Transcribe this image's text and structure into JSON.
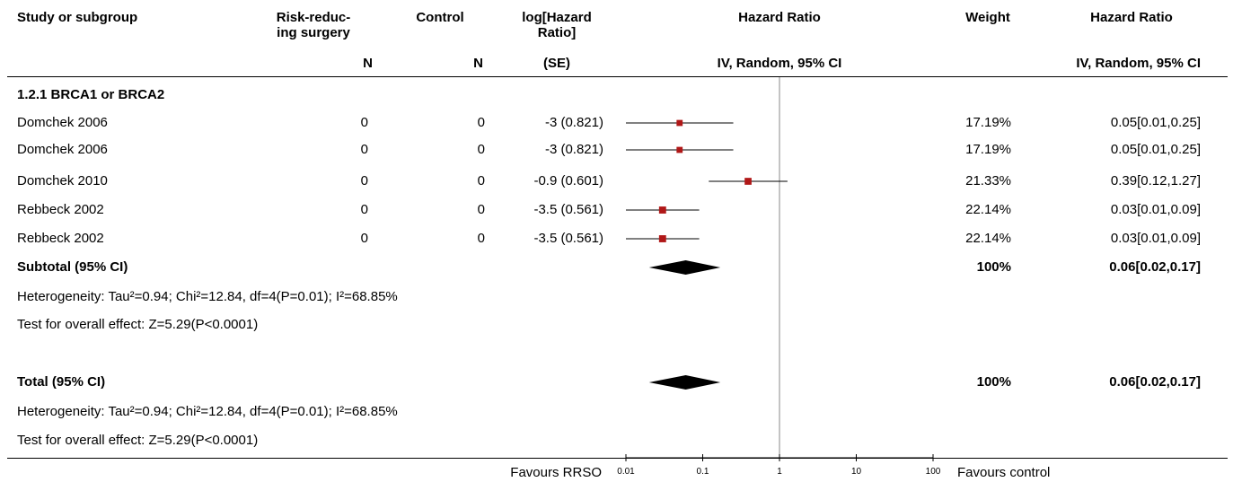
{
  "header": {
    "study": "Study or subgroup",
    "risk_line1": "Risk-reduc-",
    "risk_line2": "ing surgery",
    "control": "Control",
    "loghr_line1": "log[Hazard",
    "loghr_line2": "Ratio]",
    "hr_plot": "Hazard Ratio",
    "weight": "Weight",
    "hr_text": "Hazard Ratio",
    "sub_n1": "N",
    "sub_n2": "N",
    "sub_se": "(SE)",
    "sub_method_plot": "IV, Random, 95% CI",
    "sub_method_text": "IV, Random, 95% CI"
  },
  "subgroup": {
    "title": "1.2.1 BRCA1 or BRCA2",
    "subtotal_label": "Subtotal (95% CI)",
    "subtotal_weight": "100%",
    "subtotal_ci": "0.06[0.02,0.17]",
    "heterogeneity": "Heterogeneity: Tau²=0.94; Chi²=12.84, df=4(P=0.01); I²=68.85%",
    "overall_effect": "Test for overall effect: Z=5.29(P<0.0001)"
  },
  "total": {
    "label": "Total (95% CI)",
    "weight": "100%",
    "ci": "0.06[0.02,0.17]",
    "heterogeneity": "Heterogeneity: Tau²=0.94; Chi²=12.84, df=4(P=0.01); I²=68.85%",
    "overall_effect": "Test for overall effect: Z=5.29(P<0.0001)"
  },
  "footer": {
    "favours_left": "Favours RRSO",
    "favours_right": "Favours control"
  },
  "colors": {
    "marker": "#b01717",
    "diamond": "#000000",
    "line": "#000000"
  },
  "chart_data": {
    "type": "forest",
    "x_scale": "log",
    "xlim": [
      0.01,
      100
    ],
    "x_ticks": [
      "0.01",
      "0.1",
      "1",
      "10",
      "100"
    ],
    "null_line": 1,
    "studies": [
      {
        "name": "Domchek 2006",
        "n_rrso": "0",
        "n_control": "0",
        "loghr_se": "-3 (0.821)",
        "hr": 0.05,
        "lo": 0.01,
        "hi": 0.25,
        "weight": "17.19%",
        "ci_text": "0.05[0.01,0.25]"
      },
      {
        "name": "Domchek 2006",
        "n_rrso": "0",
        "n_control": "0",
        "loghr_se": "-3 (0.821)",
        "hr": 0.05,
        "lo": 0.01,
        "hi": 0.25,
        "weight": "17.19%",
        "ci_text": "0.05[0.01,0.25]"
      },
      {
        "name": "Domchek 2010",
        "n_rrso": "0",
        "n_control": "0",
        "loghr_se": "-0.9 (0.601)",
        "hr": 0.39,
        "lo": 0.12,
        "hi": 1.27,
        "weight": "21.33%",
        "ci_text": "0.39[0.12,1.27]"
      },
      {
        "name": "Rebbeck 2002",
        "n_rrso": "0",
        "n_control": "0",
        "loghr_se": "-3.5 (0.561)",
        "hr": 0.03,
        "lo": 0.01,
        "hi": 0.09,
        "weight": "22.14%",
        "ci_text": "0.03[0.01,0.09]"
      },
      {
        "name": "Rebbeck 2002",
        "n_rrso": "0",
        "n_control": "0",
        "loghr_se": "-3.5 (0.561)",
        "hr": 0.03,
        "lo": 0.01,
        "hi": 0.09,
        "weight": "22.14%",
        "ci_text": "0.03[0.01,0.09]"
      }
    ],
    "subtotal": {
      "hr": 0.06,
      "lo": 0.02,
      "hi": 0.17
    },
    "total": {
      "hr": 0.06,
      "lo": 0.02,
      "hi": 0.17
    }
  }
}
